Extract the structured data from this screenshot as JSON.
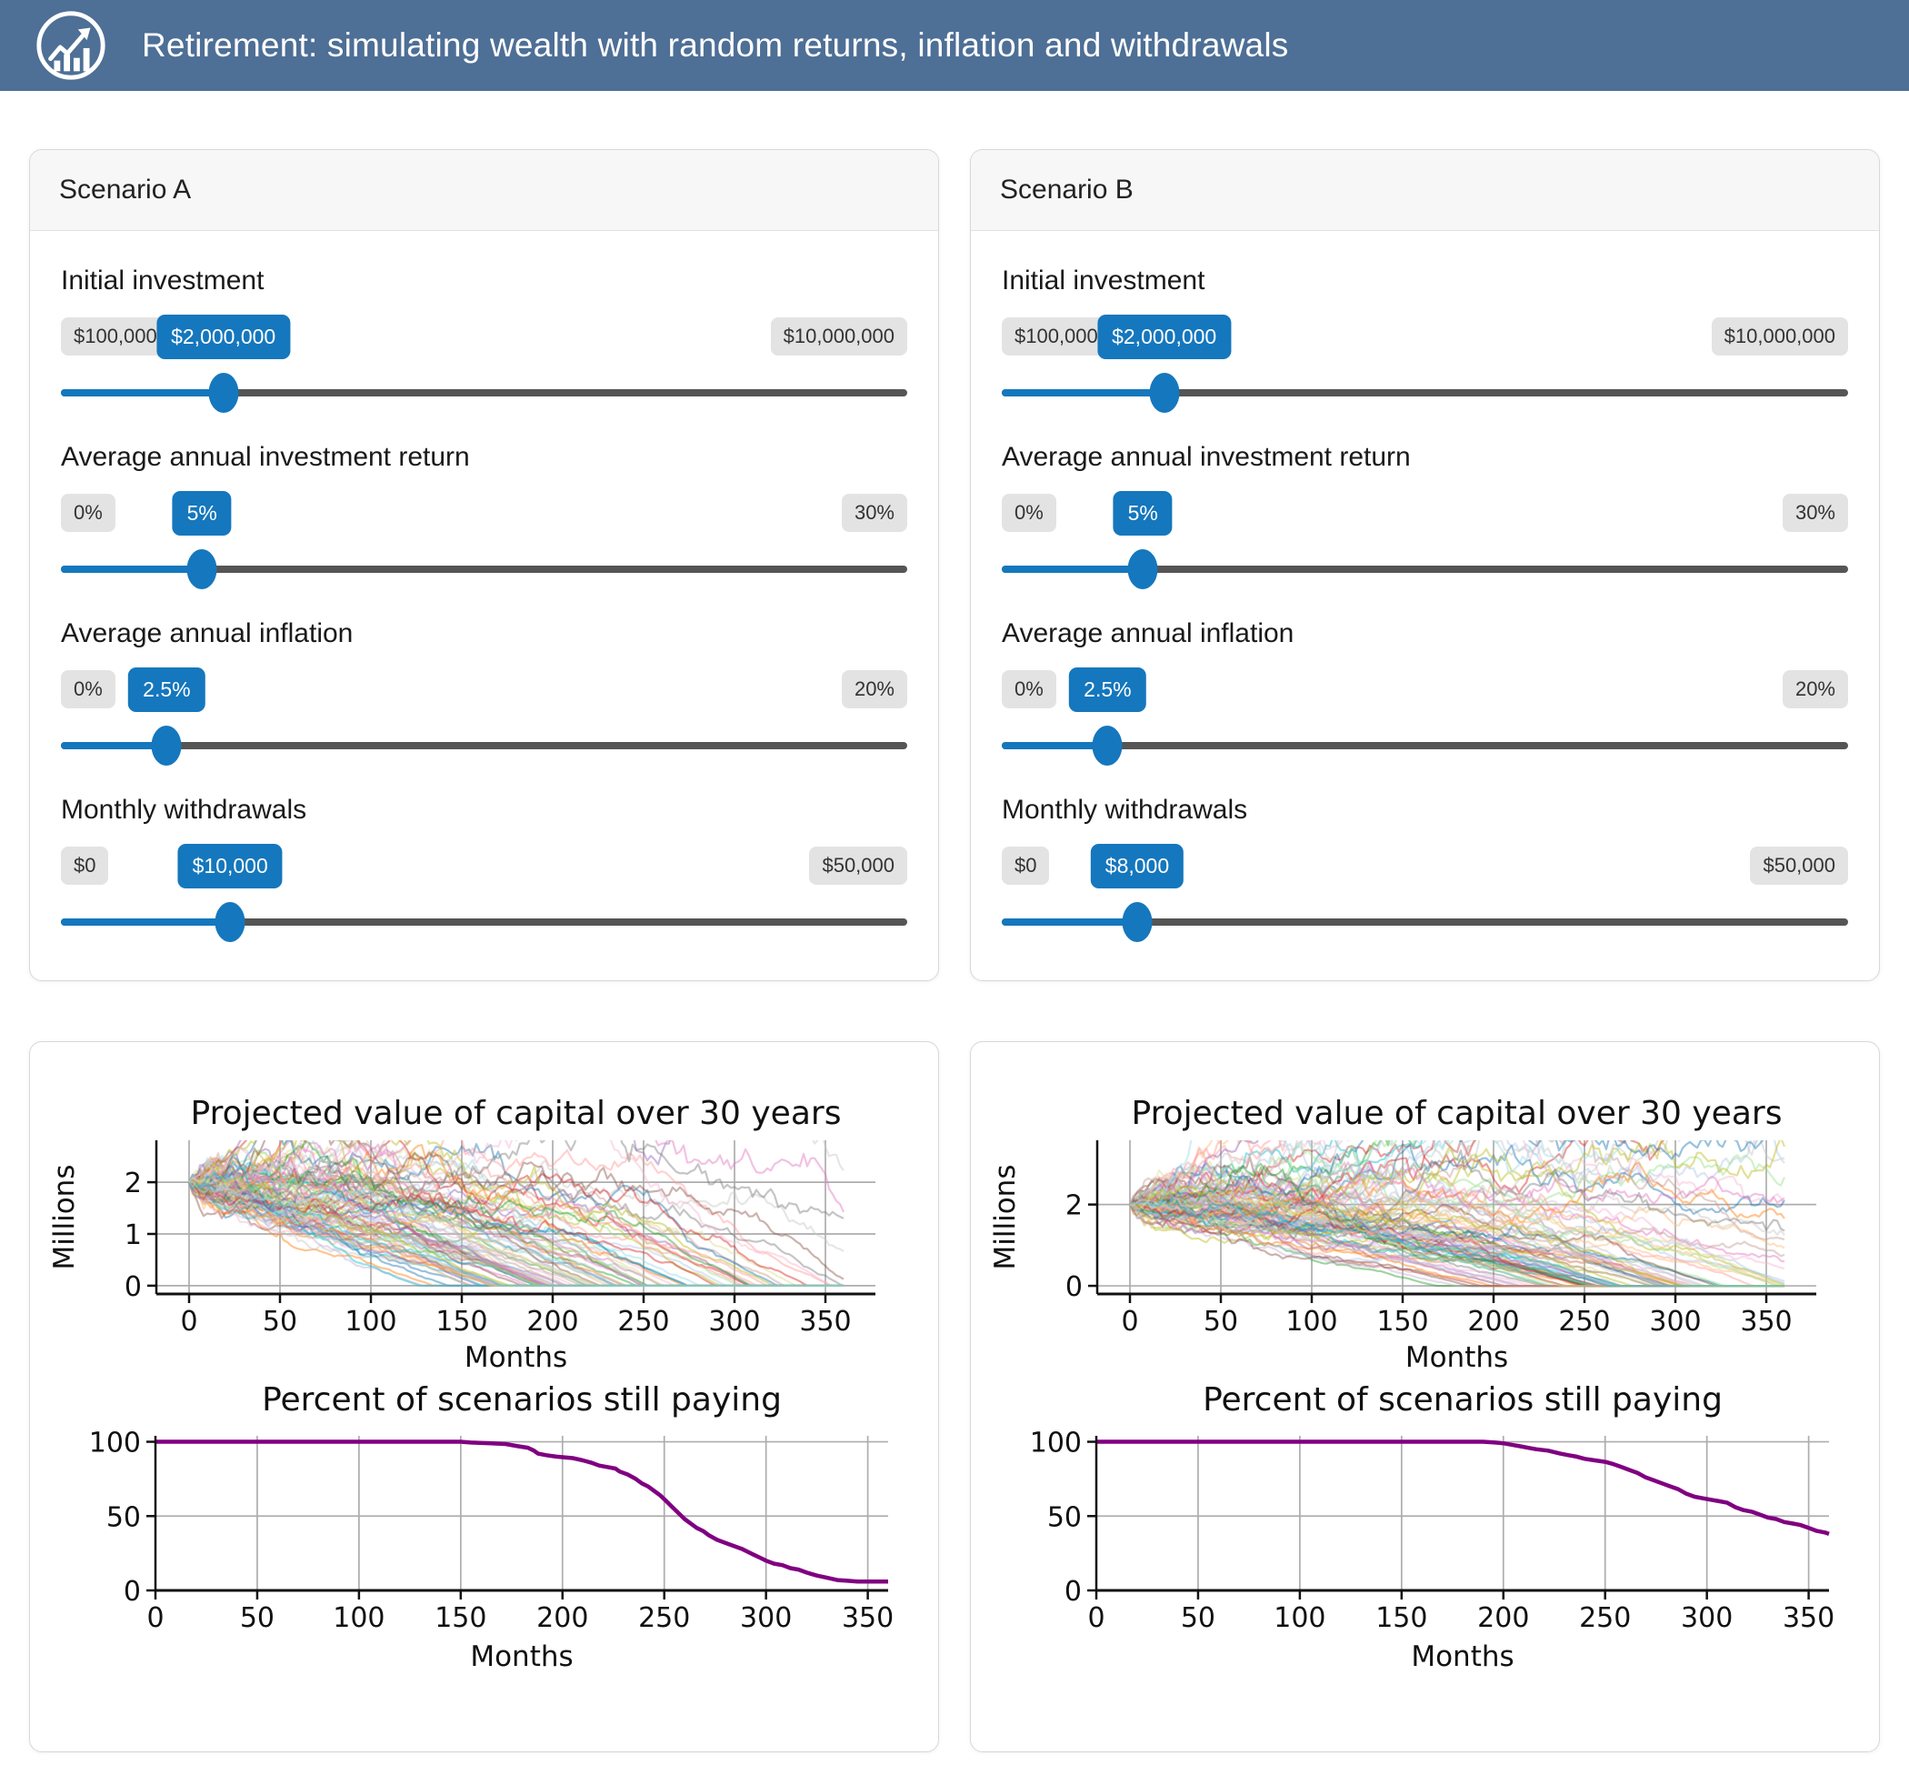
{
  "header": {
    "title": "Retirement: simulating wealth with random returns, inflation and withdrawals",
    "icon": "trending-up-chart-icon"
  },
  "colors": {
    "header_bg": "#4e6f96",
    "header_text": "#ffffff",
    "accent_blue": "#1577bd",
    "pill_gray_bg": "#e3e3e3",
    "pill_text": "#333333",
    "slider_track_remainder": "#555555",
    "card_border": "#d8d8d8",
    "card_header_bg": "#f7f7f7",
    "chart_grid": "#adadad",
    "chart_spine": "#111111",
    "chart_text": "#111111",
    "survival_line": "#800080",
    "ensemble_palette": [
      "#1f77b4",
      "#aec7e8",
      "#ff7f0e",
      "#ffbb78",
      "#2ca02c",
      "#98df8a",
      "#d62728",
      "#ff9896",
      "#9467bd",
      "#c5b0d5",
      "#8c564b",
      "#c49c94",
      "#e377c2",
      "#f7b6d2",
      "#7f7f7f",
      "#c7c7c7",
      "#bcbd22",
      "#dbdb8d",
      "#17becf",
      "#9edae5"
    ]
  },
  "scenarios": [
    {
      "id": "A",
      "title": "Scenario A",
      "controls": [
        {
          "name": "initial-investment",
          "label": "Initial investment",
          "min_label": "$100,000",
          "max_label": "$10,000,000",
          "value_label": "$2,000,000",
          "percent": 19.19
        },
        {
          "name": "average-annual-investment-return",
          "label": "Average annual investment return",
          "min_label": "0%",
          "max_label": "30%",
          "value_label": "5%",
          "percent": 16.67
        },
        {
          "name": "average-annual-inflation",
          "label": "Average annual inflation",
          "min_label": "0%",
          "max_label": "20%",
          "value_label": "2.5%",
          "percent": 12.5
        },
        {
          "name": "monthly-withdrawals",
          "label": "Monthly withdrawals",
          "min_label": "$0",
          "max_label": "$50,000",
          "value_label": "$10,000",
          "percent": 20
        }
      ]
    },
    {
      "id": "B",
      "title": "Scenario B",
      "controls": [
        {
          "name": "initial-investment",
          "label": "Initial investment",
          "min_label": "$100,000",
          "max_label": "$10,000,000",
          "value_label": "$2,000,000",
          "percent": 19.19
        },
        {
          "name": "average-annual-investment-return",
          "label": "Average annual investment return",
          "min_label": "0%",
          "max_label": "30%",
          "value_label": "5%",
          "percent": 16.67
        },
        {
          "name": "average-annual-inflation",
          "label": "Average annual inflation",
          "min_label": "0%",
          "max_label": "20%",
          "value_label": "2.5%",
          "percent": 12.5
        },
        {
          "name": "monthly-withdrawals",
          "label": "Monthly withdrawals",
          "min_label": "$0",
          "max_label": "$50,000",
          "value_label": "$8,000",
          "percent": 16
        }
      ]
    }
  ],
  "chart_data": [
    {
      "scenario": "A",
      "projection": {
        "type": "line-ensemble",
        "title": "Projected value of capital over 30 years",
        "xlabel": "Months",
        "ylabel": "Millions",
        "x_range": [
          0,
          360
        ],
        "x_ticks": [
          0,
          50,
          100,
          150,
          200,
          250,
          300,
          350
        ],
        "y_ticks": [
          0,
          1,
          2
        ],
        "y_view": [
          -0.16,
          2.81
        ],
        "n_paths": 100,
        "start_value_millions": 2.0,
        "monthly_return_mean": 0.004167,
        "monthly_volatility": 0.032,
        "monthly_withdrawal_millions": 0.01,
        "withdrawal_inflation_monthly": 0.002083,
        "seed": 42
      },
      "survival": {
        "type": "line",
        "title": "Percent of scenarios still paying",
        "xlabel": "Months",
        "x_range": [
          0,
          360
        ],
        "x_ticks": [
          0,
          50,
          100,
          150,
          200,
          250,
          300,
          350
        ],
        "y_ticks": [
          0,
          50,
          100
        ],
        "y_range": [
          0,
          104
        ],
        "x": [
          0,
          150,
          155,
          165,
          172,
          178,
          183,
          186,
          188,
          192,
          197,
          205,
          210,
          214,
          218,
          222,
          226,
          228,
          232,
          236,
          239,
          242,
          245,
          248,
          251,
          254,
          257,
          260,
          263,
          266,
          269,
          272,
          276,
          280,
          284,
          288,
          291,
          294,
          297,
          300,
          304,
          308,
          312,
          316,
          320,
          325,
          330,
          335,
          340,
          345,
          350,
          355,
          360
        ],
        "y": [
          100,
          100,
          99.5,
          99,
          98.5,
          97,
          96,
          94,
          92,
          91,
          90,
          89,
          87.5,
          86,
          84,
          83,
          82,
          80,
          78,
          75,
          72,
          70,
          67,
          64,
          60,
          56,
          52,
          48,
          45,
          42,
          40,
          37,
          34,
          32,
          30,
          28,
          26,
          24,
          22,
          20,
          18,
          17,
          15,
          14,
          12,
          10,
          8.5,
          7,
          6.5,
          6,
          6,
          6,
          6
        ]
      }
    },
    {
      "scenario": "B",
      "projection": {
        "type": "line-ensemble",
        "title": "Projected value of capital over 30 years",
        "xlabel": "Months",
        "ylabel": "Millions",
        "x_range": [
          0,
          360
        ],
        "x_ticks": [
          0,
          50,
          100,
          150,
          200,
          250,
          300,
          350
        ],
        "y_ticks": [
          0,
          2
        ],
        "y_view": [
          -0.2,
          3.58
        ],
        "n_paths": 100,
        "start_value_millions": 2.0,
        "monthly_return_mean": 0.004167,
        "monthly_volatility": 0.032,
        "monthly_withdrawal_millions": 0.008,
        "withdrawal_inflation_monthly": 0.002083,
        "seed": 1337
      },
      "survival": {
        "type": "line",
        "title": "Percent of scenarios still paying",
        "xlabel": "Months",
        "x_range": [
          0,
          360
        ],
        "x_ticks": [
          0,
          50,
          100,
          150,
          200,
          250,
          300,
          350
        ],
        "y_ticks": [
          0,
          50,
          100
        ],
        "y_range": [
          0,
          104
        ],
        "x": [
          0,
          190,
          196,
          200,
          204,
          208,
          212,
          216,
          222,
          228,
          232,
          236,
          240,
          245,
          250,
          254,
          258,
          262,
          266,
          270,
          274,
          278,
          282,
          286,
          290,
          294,
          298,
          302,
          306,
          310,
          314,
          318,
          322,
          326,
          330,
          334,
          338,
          342,
          346,
          350,
          354,
          358,
          360
        ],
        "y": [
          100,
          100,
          99.5,
          99,
          98,
          97,
          96,
          95,
          94,
          92,
          91,
          90,
          88.5,
          87.5,
          86.5,
          85,
          83,
          81,
          79,
          76,
          74,
          72,
          70,
          68,
          65,
          63,
          62,
          61,
          60,
          59,
          56,
          54,
          53,
          51,
          49,
          48,
          46,
          45,
          44,
          42,
          40,
          39,
          38
        ]
      }
    }
  ]
}
